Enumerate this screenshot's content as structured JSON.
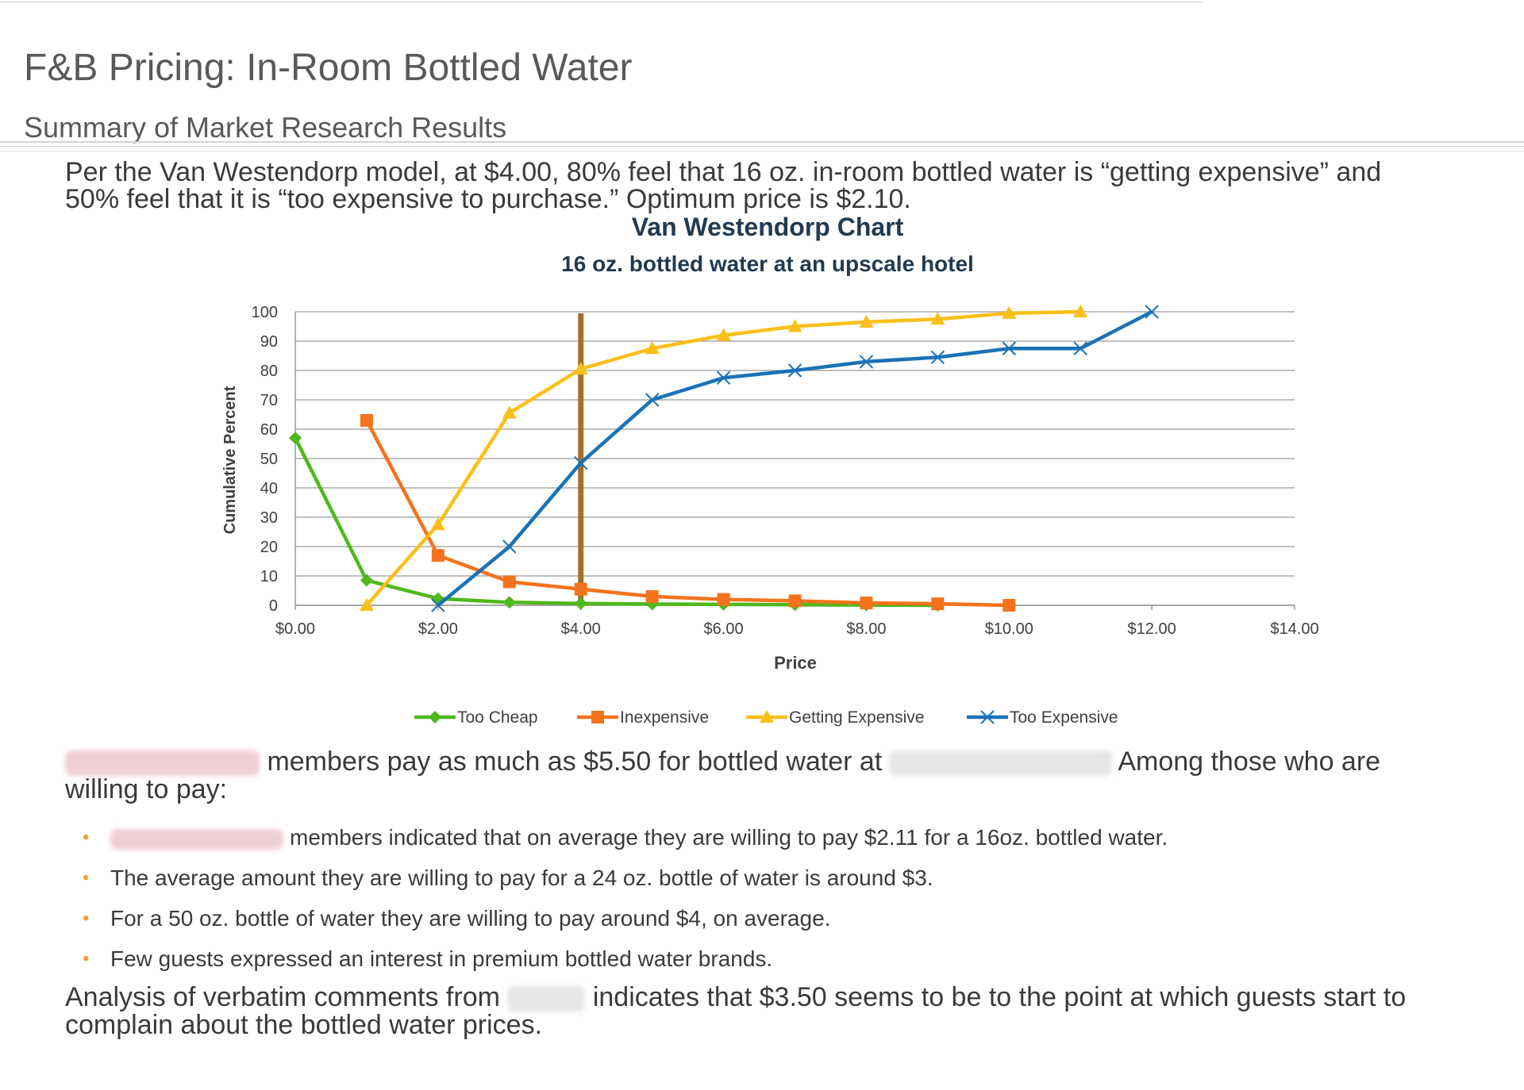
{
  "slide": {
    "title": "F&B Pricing:  In-Room Bottled Water",
    "subtitle": "Summary of Market Research Results",
    "intro": {
      "line1": "Per the Van Westendorp model, at $4.00, 80% feel that 16 oz. in-room bottled water is “getting  expensive” and",
      "line2": "50% feel that it is “too expensive to purchase.”  Optimum price is $2.10."
    },
    "members": {
      "text_a": "members pay as much as $5.50 for bottled water at",
      "text_b": "Among those who are",
      "text_c": "willing to pay:"
    },
    "bullets": [
      "members indicated that on average they are willing to pay $2.11 for a 16oz. bottled water.",
      "The average amount they are willing to pay for a 24 oz. bottle of water is around $3.",
      "For a 50 oz. bottle of water they are willing to pay around $4, on average.",
      "Few guests expressed an interest in premium bottled water brands."
    ],
    "analysis": {
      "text_a": "Analysis of verbatim comments from",
      "text_b": "indicates that $3.50 seems to be to the point at which guests start to",
      "text_c": "complain about the bottled water prices."
    },
    "colors": {
      "bullet": "#e8a33a",
      "text": "#3a3a3a",
      "heading": "#595959"
    }
  },
  "chart_data": {
    "type": "line",
    "title": "Van Westendorp Chart",
    "subtitle": "16 oz. bottled water at an upscale hotel",
    "xlabel": "Price",
    "ylabel": "Cumulative Percent",
    "xlim": [
      0,
      14
    ],
    "ylim": [
      0,
      100
    ],
    "x_ticks": [
      0,
      2,
      4,
      6,
      8,
      10,
      12,
      14
    ],
    "x_tick_labels": [
      "$0.00",
      "$2.00",
      "$4.00",
      "$6.00",
      "$8.00",
      "$10.00",
      "$12.00",
      "$14.00"
    ],
    "y_ticks": [
      0,
      10,
      20,
      30,
      40,
      50,
      60,
      70,
      80,
      90,
      100
    ],
    "grid": true,
    "legend_position": "bottom",
    "reference_line": {
      "x": 4,
      "color": "#a5702a"
    },
    "series": [
      {
        "name": "Too Cheap",
        "color": "#4fb81c",
        "marker": "diamond",
        "points": [
          [
            0,
            57
          ],
          [
            1,
            8.5
          ],
          [
            2,
            2.3
          ],
          [
            3,
            1
          ],
          [
            4,
            0.6
          ],
          [
            5,
            0.4
          ],
          [
            6,
            0.3
          ],
          [
            7,
            0.2
          ],
          [
            8,
            0.1
          ],
          [
            9,
            0
          ]
        ]
      },
      {
        "name": "Inexpensive",
        "color": "#f4731c",
        "marker": "square",
        "points": [
          [
            1,
            63
          ],
          [
            2,
            17
          ],
          [
            3,
            8
          ],
          [
            4,
            5.5
          ],
          [
            5,
            3
          ],
          [
            6,
            2
          ],
          [
            7,
            1.5
          ],
          [
            8,
            0.8
          ],
          [
            9,
            0.5
          ],
          [
            10,
            0
          ]
        ]
      },
      {
        "name": "Getting Expensive",
        "color": "#fbbf1a",
        "marker": "triangle",
        "points": [
          [
            1,
            0
          ],
          [
            2,
            27.5
          ],
          [
            3,
            65.5
          ],
          [
            4,
            80.5
          ],
          [
            5,
            87.5
          ],
          [
            6,
            92
          ],
          [
            7,
            95
          ],
          [
            8,
            96.5
          ],
          [
            9,
            97.5
          ],
          [
            10,
            99.5
          ],
          [
            11,
            100
          ]
        ]
      },
      {
        "name": "Too Expensive",
        "color": "#1b72b6",
        "marker": "x",
        "points": [
          [
            2,
            0
          ],
          [
            3,
            20
          ],
          [
            4,
            48.5
          ],
          [
            5,
            70
          ],
          [
            6,
            77.5
          ],
          [
            7,
            80
          ],
          [
            8,
            83
          ],
          [
            9,
            84.5
          ],
          [
            10,
            87.5
          ],
          [
            11,
            87.5
          ],
          [
            12,
            100
          ]
        ]
      }
    ]
  }
}
